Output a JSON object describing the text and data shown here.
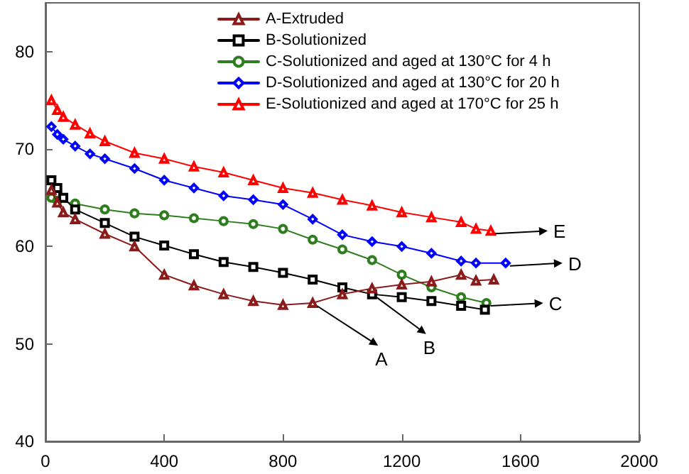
{
  "chart_data": {
    "type": "line",
    "xlim": [
      0,
      2000
    ],
    "xticks": [
      0,
      400,
      800,
      1200,
      1600,
      2000
    ],
    "ylim": [
      40,
      85
    ],
    "yticks": [
      40,
      50,
      60,
      70,
      80
    ],
    "grid": false,
    "legend": "top",
    "line_style": "solid",
    "series": [
      {
        "name": "A-Extruded",
        "color": "#8b1a1a",
        "marker": "triangle",
        "x": [
          20,
          40,
          60,
          100,
          200,
          300,
          400,
          500,
          600,
          700,
          800,
          900,
          1000,
          1100,
          1200,
          1300,
          1400,
          1450,
          1510
        ],
        "values": [
          65.8,
          64.5,
          63.5,
          62.8,
          61.3,
          60,
          57.1,
          56,
          55.1,
          54.4,
          54,
          54.2,
          55.1,
          55.7,
          56.1,
          56.4,
          57.1,
          56.5,
          56.6
        ]
      },
      {
        "name": "B-Solutionized",
        "color": "#000000",
        "marker": "square",
        "x": [
          20,
          40,
          60,
          100,
          200,
          300,
          400,
          500,
          600,
          700,
          800,
          900,
          1000,
          1100,
          1200,
          1300,
          1400,
          1480
        ],
        "values": [
          66.8,
          66,
          65,
          63.8,
          62.4,
          61,
          60.1,
          59.2,
          58.4,
          57.9,
          57.3,
          56.6,
          55.8,
          55.1,
          54.8,
          54.4,
          53.9,
          53.5
        ]
      },
      {
        "name": "C-Solutionized and aged at 130°C for 4 h",
        "color": "#2e7d1e",
        "marker": "circle",
        "x": [
          20,
          40,
          100,
          200,
          300,
          400,
          500,
          600,
          700,
          800,
          900,
          1000,
          1100,
          1200,
          1300,
          1400,
          1485
        ],
        "values": [
          65,
          64.7,
          64.4,
          63.8,
          63.4,
          63.2,
          62.9,
          62.6,
          62.3,
          61.8,
          60.7,
          59.7,
          58.6,
          57.1,
          55.8,
          54.8,
          54.2
        ]
      },
      {
        "name": "D-Solutionized and aged at 130°C for 20 h",
        "color": "#0000ff",
        "marker": "diamond",
        "x": [
          20,
          40,
          60,
          100,
          150,
          200,
          300,
          400,
          500,
          600,
          700,
          800,
          900,
          1000,
          1100,
          1200,
          1300,
          1400,
          1450,
          1550
        ],
        "values": [
          72.3,
          71.5,
          71,
          70.3,
          69.5,
          69,
          68,
          66.8,
          66,
          65.2,
          64.8,
          64.3,
          62.8,
          61.2,
          60.5,
          60,
          59.3,
          58.5,
          58.3,
          58.3
        ]
      },
      {
        "name": "E-Solutionized and aged at 170°C for 25 h",
        "color": "#ff0000",
        "marker": "triangle",
        "x": [
          20,
          40,
          60,
          100,
          150,
          200,
          300,
          400,
          500,
          600,
          700,
          800,
          900,
          1000,
          1100,
          1200,
          1300,
          1400,
          1450,
          1500
        ],
        "values": [
          75,
          74,
          73.3,
          72.5,
          71.6,
          70.8,
          69.6,
          69,
          68.2,
          67.6,
          66.8,
          66,
          65.5,
          64.8,
          64.2,
          63.5,
          63,
          62.5,
          61.8,
          61.6
        ]
      }
    ],
    "annotations": [
      "A",
      "B",
      "C",
      "D",
      "E"
    ]
  }
}
